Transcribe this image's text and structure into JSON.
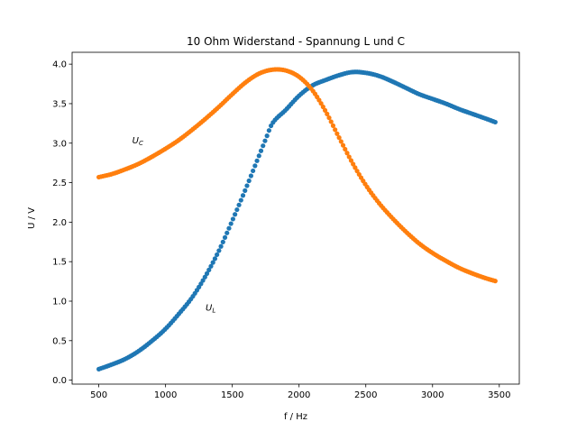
{
  "chart_data": {
    "type": "scatter",
    "title": "10 Ohm Widerstand - Spannung L und C",
    "xlabel": "f / Hz",
    "ylabel": "U / V",
    "xlim": [
      300,
      3650
    ],
    "ylim": [
      -0.05,
      4.15
    ],
    "xticks": [
      500,
      1000,
      1500,
      2000,
      2500,
      3000,
      3500
    ],
    "yticks": [
      0.0,
      0.5,
      1.0,
      1.5,
      2.0,
      2.5,
      3.0,
      3.5,
      4.0
    ],
    "grid": false,
    "colors": {
      "series_L": "#1f77b4",
      "series_C": "#ff7f0e"
    },
    "annotations": [
      {
        "base": "U",
        "sub": "C",
        "x": 750,
        "y": 3.0,
        "series": "C"
      },
      {
        "base": "U",
        "sub": "L",
        "x": 1300,
        "y": 0.88,
        "series": "L"
      }
    ],
    "series": [
      {
        "key": "L",
        "x": [
          500,
          600,
          700,
          800,
          900,
          1000,
          1100,
          1200,
          1300,
          1400,
          1500,
          1600,
          1700,
          1750,
          1800,
          1900,
          2000,
          2100,
          2200,
          2300,
          2400,
          2500,
          2600,
          2700,
          2800,
          2900,
          3000,
          3100,
          3200,
          3300,
          3400,
          3480
        ],
        "y": [
          0.14,
          0.2,
          0.27,
          0.37,
          0.5,
          0.65,
          0.84,
          1.05,
          1.32,
          1.64,
          2.02,
          2.42,
          2.84,
          3.05,
          3.25,
          3.42,
          3.6,
          3.73,
          3.8,
          3.86,
          3.9,
          3.89,
          3.85,
          3.78,
          3.7,
          3.62,
          3.56,
          3.5,
          3.43,
          3.37,
          3.31,
          3.26
        ]
      },
      {
        "key": "C",
        "x": [
          500,
          600,
          700,
          800,
          900,
          1000,
          1100,
          1200,
          1300,
          1400,
          1500,
          1600,
          1700,
          1800,
          1900,
          2000,
          2100,
          2200,
          2300,
          2400,
          2500,
          2600,
          2700,
          2800,
          2900,
          3000,
          3100,
          3200,
          3300,
          3400,
          3480
        ],
        "y": [
          2.57,
          2.61,
          2.67,
          2.74,
          2.83,
          2.93,
          3.04,
          3.17,
          3.31,
          3.46,
          3.62,
          3.77,
          3.88,
          3.93,
          3.92,
          3.84,
          3.67,
          3.4,
          3.07,
          2.75,
          2.47,
          2.24,
          2.05,
          1.88,
          1.73,
          1.61,
          1.51,
          1.42,
          1.35,
          1.29,
          1.25
        ]
      }
    ]
  }
}
